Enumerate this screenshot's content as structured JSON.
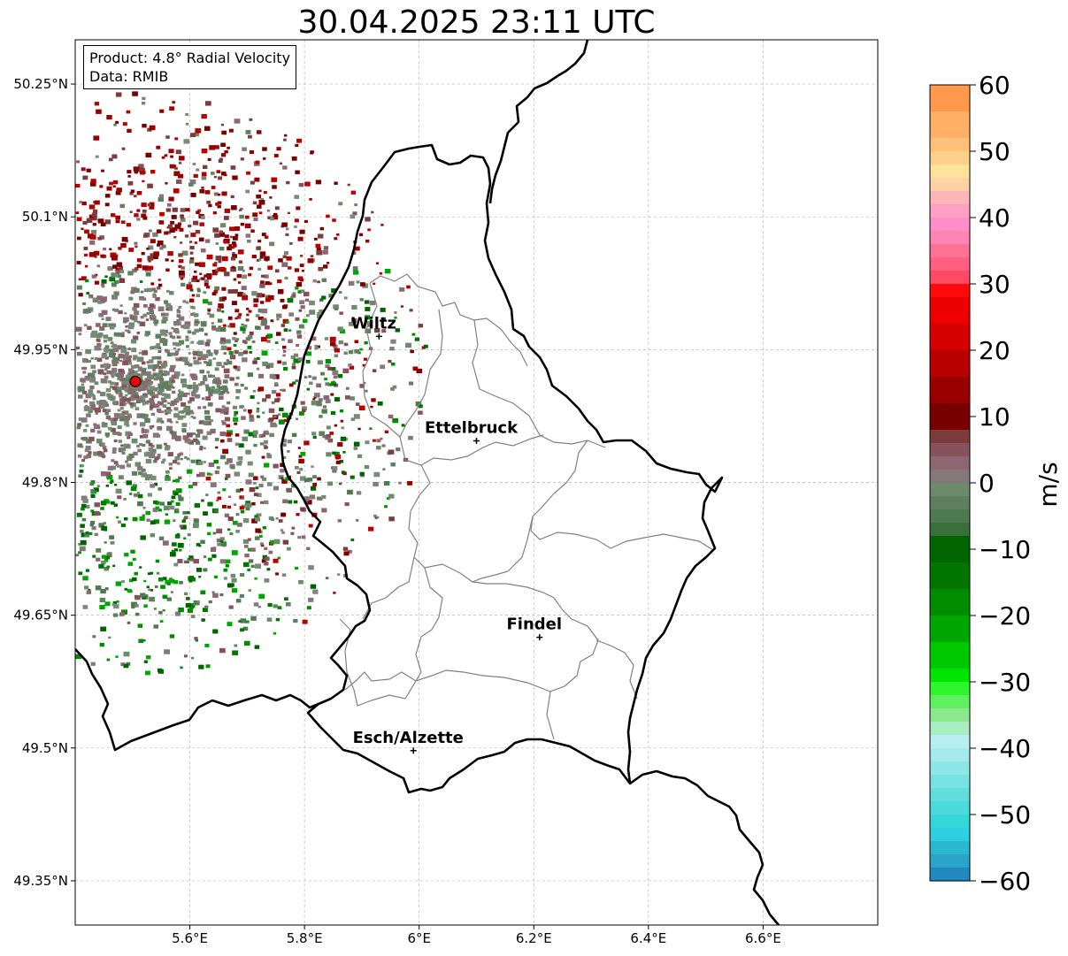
{
  "title": "30.04.2025 23:11 UTC",
  "info": {
    "product": "Product: 4.8° Radial Velocity",
    "data": "Data: RMIB"
  },
  "map": {
    "lon_range": [
      5.4,
      6.8
    ],
    "lat_range": [
      49.3,
      50.3
    ],
    "x_ticks": [
      {
        "value": 5.6,
        "label": "5.6°E"
      },
      {
        "value": 5.8,
        "label": "5.8°E"
      },
      {
        "value": 6.0,
        "label": "6°E"
      },
      {
        "value": 6.2,
        "label": "6.2°E"
      },
      {
        "value": 6.4,
        "label": "6.4°E"
      },
      {
        "value": 6.6,
        "label": "6.6°E"
      }
    ],
    "y_ticks": [
      {
        "value": 50.25,
        "label": "50.25°N"
      },
      {
        "value": 50.1,
        "label": "50.1°N"
      },
      {
        "value": 49.95,
        "label": "49.95°N"
      },
      {
        "value": 49.8,
        "label": "49.8°N"
      },
      {
        "value": 49.65,
        "label": "49.65°N"
      },
      {
        "value": 49.5,
        "label": "49.5°N"
      },
      {
        "value": 49.35,
        "label": "49.35°N"
      }
    ],
    "cities": [
      {
        "name": "Wiltz",
        "lon": 5.93,
        "lat": 49.965
      },
      {
        "name": "Ettelbruck",
        "lon": 6.1,
        "lat": 49.847
      },
      {
        "name": "Findel",
        "lon": 6.21,
        "lat": 49.625
      },
      {
        "name": "Esch/Alzette",
        "lon": 5.99,
        "lat": 49.497
      }
    ],
    "radar_site": {
      "lon": 5.505,
      "lat": 49.914,
      "color": "#e8000b"
    },
    "border_color": "#000000",
    "canton_color": "#808080",
    "grid": true
  },
  "colorbar": {
    "min": -60,
    "max": 60,
    "ticks": [
      60,
      50,
      40,
      30,
      20,
      10,
      0,
      -10,
      -20,
      -30,
      -40,
      -50,
      -60
    ],
    "tick_labels": [
      "60",
      "50",
      "40",
      "30",
      "20",
      "10",
      "0",
      "−10",
      "−20",
      "−30",
      "−40",
      "−50",
      "−60"
    ],
    "unit": "m/s",
    "stops": [
      {
        "from": 60,
        "to": 56,
        "color": "#ff9a4d"
      },
      {
        "from": 56,
        "to": 52,
        "color": "#ffb066"
      },
      {
        "from": 52,
        "to": 50,
        "color": "#ffc07a"
      },
      {
        "from": 50,
        "to": 48,
        "color": "#ffd08a"
      },
      {
        "from": 48,
        "to": 46,
        "color": "#ffe39a"
      },
      {
        "from": 46,
        "to": 44,
        "color": "#ffd2a4"
      },
      {
        "from": 44,
        "to": 42,
        "color": "#ffb6b8"
      },
      {
        "from": 42,
        "to": 40,
        "color": "#ffa0c4"
      },
      {
        "from": 40,
        "to": 38,
        "color": "#ff8ecc"
      },
      {
        "from": 38,
        "to": 36,
        "color": "#ff86b4"
      },
      {
        "from": 36,
        "to": 34,
        "color": "#ff7296"
      },
      {
        "from": 34,
        "to": 32,
        "color": "#ff5f80"
      },
      {
        "from": 32,
        "to": 30,
        "color": "#ff4a66"
      },
      {
        "from": 30,
        "to": 28,
        "color": "#ff0a0a"
      },
      {
        "from": 28,
        "to": 24,
        "color": "#ef0000"
      },
      {
        "from": 24,
        "to": 20,
        "color": "#d60000"
      },
      {
        "from": 20,
        "to": 16,
        "color": "#b80000"
      },
      {
        "from": 16,
        "to": 12,
        "color": "#980000"
      },
      {
        "from": 12,
        "to": 8,
        "color": "#780000"
      },
      {
        "from": 8,
        "to": 6,
        "color": "#7c3c3c"
      },
      {
        "from": 6,
        "to": 4,
        "color": "#86525c"
      },
      {
        "from": 4,
        "to": 2,
        "color": "#8c6670"
      },
      {
        "from": 2,
        "to": 0,
        "color": "#86777b"
      },
      {
        "from": 0,
        "to": -2,
        "color": "#6d8a6d"
      },
      {
        "from": -2,
        "to": -4,
        "color": "#5e805e"
      },
      {
        "from": -4,
        "to": -6,
        "color": "#4f7a4f"
      },
      {
        "from": -6,
        "to": -8,
        "color": "#3a6e3a"
      },
      {
        "from": -8,
        "to": -12,
        "color": "#006400"
      },
      {
        "from": -12,
        "to": -16,
        "color": "#007600"
      },
      {
        "from": -16,
        "to": -20,
        "color": "#008c00"
      },
      {
        "from": -20,
        "to": -24,
        "color": "#00a600"
      },
      {
        "from": -24,
        "to": -28,
        "color": "#00c800"
      },
      {
        "from": -28,
        "to": -30,
        "color": "#00e600"
      },
      {
        "from": -30,
        "to": -32,
        "color": "#2ef52e"
      },
      {
        "from": -32,
        "to": -34,
        "color": "#5ef05e"
      },
      {
        "from": -34,
        "to": -36,
        "color": "#8ce88c"
      },
      {
        "from": -36,
        "to": -38,
        "color": "#a8eec0"
      },
      {
        "from": -38,
        "to": -40,
        "color": "#b8eef0"
      },
      {
        "from": -40,
        "to": -42,
        "color": "#a4eaea"
      },
      {
        "from": -42,
        "to": -44,
        "color": "#8ee6e6"
      },
      {
        "from": -44,
        "to": -46,
        "color": "#78e2e2"
      },
      {
        "from": -46,
        "to": -48,
        "color": "#60dede"
      },
      {
        "from": -48,
        "to": -50,
        "color": "#4adada"
      },
      {
        "from": -50,
        "to": -52,
        "color": "#34d6d6"
      },
      {
        "from": -52,
        "to": -54,
        "color": "#2ed0e0"
      },
      {
        "from": -54,
        "to": -56,
        "color": "#2ab8d0"
      },
      {
        "from": -56,
        "to": -58,
        "color": "#2aa4c8"
      },
      {
        "from": -58,
        "to": -60,
        "color": "#2288c0"
      }
    ]
  }
}
